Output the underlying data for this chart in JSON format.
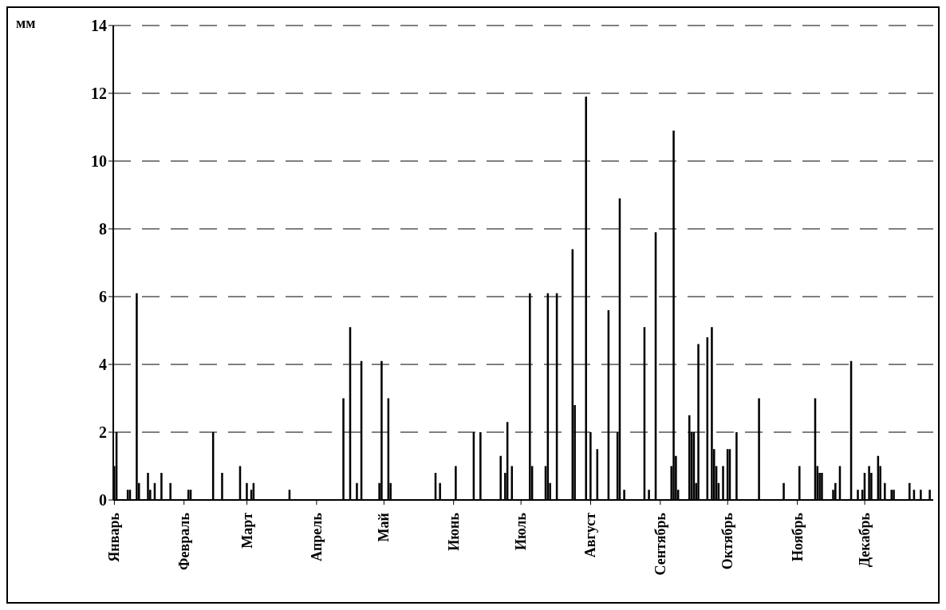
{
  "chart_data": {
    "type": "bar",
    "ylabel": "мм",
    "categories": [
      "Январь",
      null,
      null,
      null,
      null,
      null,
      null,
      null,
      null,
      null,
      null,
      null,
      null,
      null,
      null,
      null,
      null,
      null,
      null,
      null,
      null,
      null,
      null,
      null,
      null,
      null,
      null,
      null,
      null,
      null,
      null,
      "Февраль",
      null,
      null,
      null,
      null,
      null,
      null,
      null,
      null,
      null,
      null,
      null,
      null,
      null,
      null,
      null,
      null,
      null,
      null,
      null,
      null,
      null,
      null,
      null,
      null,
      null,
      null,
      null,
      "Март",
      null,
      null,
      null,
      null,
      null,
      null,
      null,
      null,
      null,
      null,
      null,
      null,
      null,
      null,
      null,
      null,
      null,
      null,
      null,
      null,
      null,
      null,
      null,
      null,
      null,
      null,
      null,
      null,
      null,
      null,
      "Апрель",
      null,
      null,
      null,
      null,
      null,
      null,
      null,
      null,
      null,
      null,
      null,
      null,
      null,
      null,
      null,
      null,
      null,
      null,
      null,
      null,
      null,
      null,
      null,
      null,
      null,
      null,
      null,
      null,
      null,
      "Май",
      null,
      null,
      null,
      null,
      null,
      null,
      null,
      null,
      null,
      null,
      null,
      null,
      null,
      null,
      null,
      null,
      null,
      null,
      null,
      null,
      null,
      null,
      null,
      null,
      null,
      null,
      null,
      null,
      null,
      null,
      "Июнь",
      null,
      null,
      null,
      null,
      null,
      null,
      null,
      null,
      null,
      null,
      null,
      null,
      null,
      null,
      null,
      null,
      null,
      null,
      null,
      null,
      null,
      null,
      null,
      null,
      null,
      null,
      null,
      null,
      null,
      "Июль",
      null,
      null,
      null,
      null,
      null,
      null,
      null,
      null,
      null,
      null,
      null,
      null,
      null,
      null,
      null,
      null,
      null,
      null,
      null,
      null,
      null,
      null,
      null,
      null,
      null,
      null,
      null,
      null,
      null,
      null,
      "Август",
      null,
      null,
      null,
      null,
      null,
      null,
      null,
      null,
      null,
      null,
      null,
      null,
      null,
      null,
      null,
      null,
      null,
      null,
      null,
      null,
      null,
      null,
      null,
      null,
      null,
      null,
      null,
      null,
      null,
      null,
      "Сентябрь",
      null,
      null,
      null,
      null,
      null,
      null,
      null,
      null,
      null,
      null,
      null,
      null,
      null,
      null,
      null,
      null,
      null,
      null,
      null,
      null,
      null,
      null,
      null,
      null,
      null,
      null,
      null,
      null,
      null,
      "Октябрь",
      null,
      null,
      null,
      null,
      null,
      null,
      null,
      null,
      null,
      null,
      null,
      null,
      null,
      null,
      null,
      null,
      null,
      null,
      null,
      null,
      null,
      null,
      null,
      null,
      null,
      null,
      null,
      null,
      null,
      null,
      "Ноябрь",
      null,
      null,
      null,
      null,
      null,
      null,
      null,
      null,
      null,
      null,
      null,
      null,
      null,
      null,
      null,
      null,
      null,
      null,
      null,
      null,
      null,
      null,
      null,
      null,
      null,
      null,
      null,
      null,
      null,
      "Декабрь",
      null,
      null,
      null,
      null,
      null,
      null,
      null,
      null,
      null,
      null,
      null,
      null,
      null,
      null,
      null,
      null,
      null,
      null,
      null,
      null,
      null,
      null,
      null,
      null,
      null,
      null,
      null,
      null,
      null,
      null
    ],
    "values": [
      1.0,
      2.0,
      null,
      null,
      null,
      null,
      0.3,
      0.3,
      null,
      null,
      6.1,
      0.5,
      null,
      null,
      null,
      0.8,
      0.3,
      null,
      0.5,
      null,
      null,
      0.8,
      null,
      null,
      null,
      0.5,
      null,
      null,
      null,
      null,
      null,
      null,
      null,
      0.3,
      0.3,
      null,
      null,
      null,
      null,
      null,
      null,
      null,
      null,
      null,
      2.0,
      null,
      null,
      null,
      0.8,
      null,
      null,
      null,
      null,
      null,
      null,
      null,
      1.0,
      null,
      null,
      0.5,
      null,
      0.3,
      0.5,
      null,
      null,
      null,
      null,
      null,
      null,
      null,
      null,
      null,
      null,
      null,
      null,
      null,
      null,
      null,
      0.3,
      null,
      null,
      null,
      null,
      null,
      null,
      null,
      null,
      null,
      null,
      null,
      null,
      null,
      null,
      null,
      null,
      null,
      null,
      null,
      null,
      null,
      null,
      null,
      3.0,
      null,
      null,
      5.1,
      null,
      null,
      0.5,
      null,
      4.1,
      null,
      null,
      null,
      null,
      null,
      null,
      null,
      0.5,
      4.1,
      null,
      null,
      3.0,
      0.5,
      null,
      null,
      null,
      null,
      null,
      null,
      null,
      null,
      null,
      null,
      null,
      null,
      null,
      null,
      null,
      null,
      null,
      null,
      null,
      0.8,
      null,
      0.5,
      null,
      null,
      null,
      null,
      null,
      null,
      1.0,
      null,
      null,
      null,
      null,
      null,
      null,
      null,
      2.0,
      null,
      null,
      2.0,
      null,
      null,
      null,
      null,
      null,
      null,
      null,
      null,
      1.3,
      null,
      0.8,
      2.3,
      null,
      1.0,
      null,
      null,
      null,
      null,
      null,
      null,
      null,
      6.1,
      1.0,
      null,
      null,
      null,
      null,
      null,
      1.0,
      6.1,
      0.5,
      null,
      null,
      6.1,
      null,
      null,
      null,
      null,
      null,
      null,
      7.4,
      2.8,
      null,
      null,
      null,
      null,
      11.9,
      null,
      2.0,
      null,
      null,
      1.5,
      null,
      null,
      null,
      null,
      5.6,
      null,
      null,
      null,
      2.0,
      8.9,
      null,
      0.3,
      null,
      null,
      null,
      null,
      null,
      null,
      null,
      null,
      5.1,
      null,
      0.3,
      null,
      null,
      7.9,
      null,
      null,
      null,
      null,
      null,
      null,
      1.0,
      10.9,
      1.3,
      0.3,
      null,
      null,
      null,
      null,
      2.5,
      2.0,
      2.0,
      0.5,
      4.6,
      null,
      null,
      null,
      4.8,
      null,
      5.1,
      1.5,
      1.0,
      0.5,
      null,
      1.0,
      null,
      1.5,
      1.5,
      null,
      null,
      2.0,
      null,
      null,
      null,
      null,
      null,
      null,
      null,
      null,
      null,
      3.0,
      null,
      null,
      null,
      null,
      null,
      null,
      null,
      null,
      null,
      null,
      0.5,
      null,
      null,
      null,
      null,
      null,
      null,
      1.0,
      null,
      null,
      null,
      null,
      null,
      null,
      3.0,
      1.0,
      0.8,
      0.8,
      null,
      null,
      null,
      null,
      0.3,
      0.5,
      null,
      1.0,
      null,
      null,
      null,
      null,
      4.1,
      null,
      null,
      0.3,
      null,
      0.3,
      0.8,
      null,
      1.0,
      0.8,
      null,
      null,
      1.3,
      1.0,
      null,
      0.5,
      null,
      null,
      0.3,
      0.3,
      null,
      null,
      null,
      null,
      null,
      null,
      0.5,
      null,
      0.3,
      null,
      null,
      0.3,
      null,
      null,
      null,
      0.3,
      null
    ],
    "color": "#000000",
    "ylim": [
      0,
      14
    ],
    "yticks": [
      0,
      2,
      4,
      6,
      8,
      10,
      12,
      14
    ],
    "grid": "y"
  }
}
